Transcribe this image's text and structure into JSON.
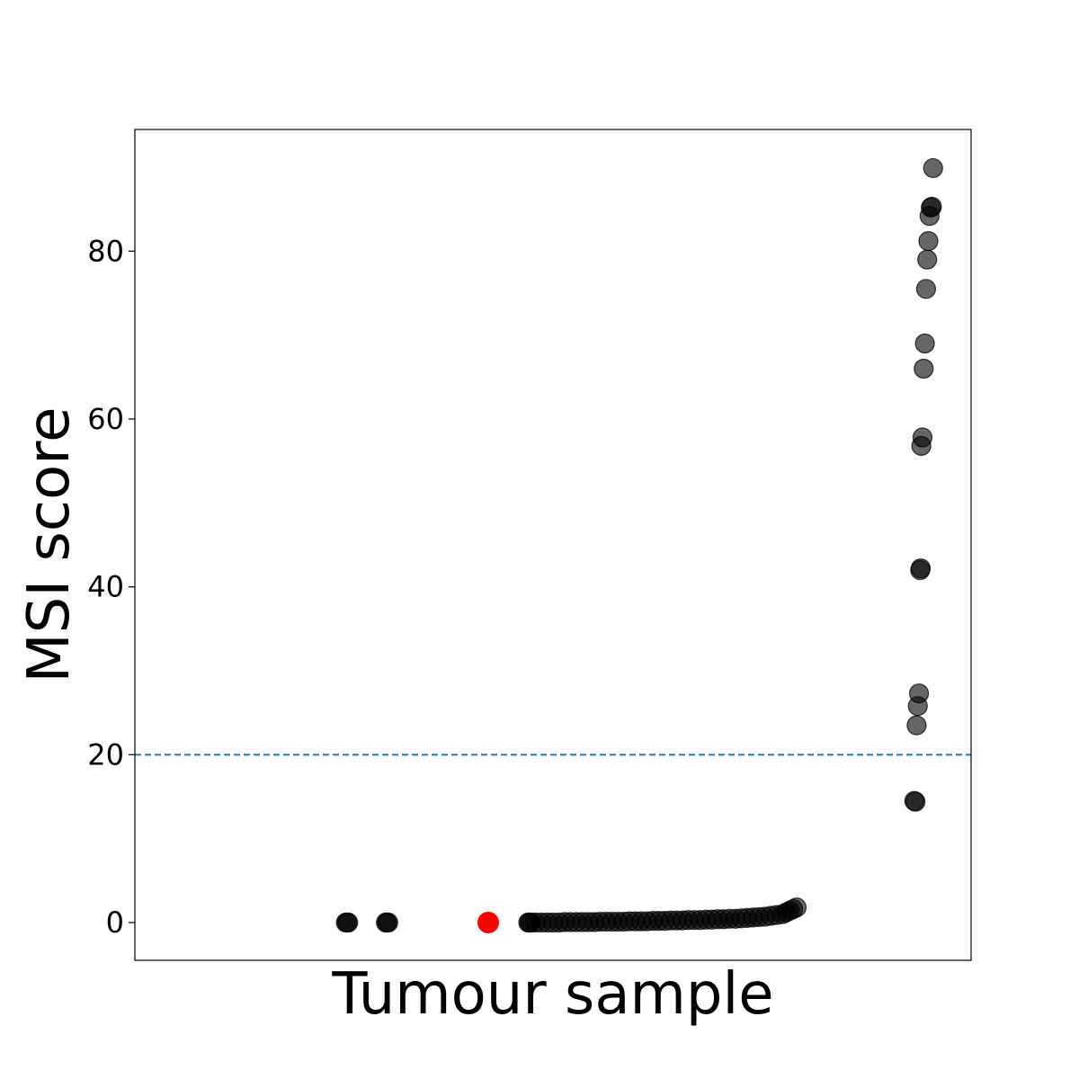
{
  "chart_data": {
    "type": "scatter",
    "title": "",
    "xlabel": "Tumour sample",
    "ylabel": "MSI score",
    "ylim": [
      -4.5,
      94.5
    ],
    "yticks": [
      0,
      20,
      40,
      60,
      80
    ],
    "x_ticks_shown": false,
    "grid": false,
    "legend": "none",
    "threshold": {
      "y": 20,
      "style": "dashed",
      "color": "#1f77b4"
    },
    "colors": {
      "point": "#000000",
      "highlight": "#ff0000",
      "axes": "#000000"
    },
    "point_opacity": 0.6,
    "highlight": {
      "x": 285,
      "y": 0
    },
    "x_range": [
      0,
      680
    ],
    "series": [
      {
        "points": [
          [
            164,
            0
          ],
          [
            165,
            0
          ],
          [
            166,
            0
          ],
          [
            198,
            0
          ],
          [
            199,
            0
          ],
          [
            200,
            0
          ],
          [
            319,
            0
          ],
          [
            320,
            0
          ],
          [
            321,
            0
          ],
          [
            325,
            0
          ],
          [
            330,
            0
          ],
          [
            335,
            0
          ],
          [
            340,
            0
          ],
          [
            345,
            0
          ],
          [
            350,
            0.05
          ],
          [
            355,
            0.05
          ],
          [
            360,
            0.05
          ],
          [
            365,
            0.05
          ],
          [
            370,
            0.05
          ],
          [
            375,
            0.05
          ],
          [
            380,
            0.1
          ],
          [
            385,
            0.1
          ],
          [
            390,
            0.1
          ],
          [
            395,
            0.1
          ],
          [
            400,
            0.1
          ],
          [
            405,
            0.15
          ],
          [
            410,
            0.15
          ],
          [
            415,
            0.15
          ],
          [
            420,
            0.15
          ],
          [
            425,
            0.2
          ],
          [
            430,
            0.2
          ],
          [
            435,
            0.2
          ],
          [
            440,
            0.25
          ],
          [
            445,
            0.25
          ],
          [
            450,
            0.25
          ],
          [
            455,
            0.3
          ],
          [
            460,
            0.3
          ],
          [
            465,
            0.3
          ],
          [
            470,
            0.35
          ],
          [
            475,
            0.35
          ],
          [
            480,
            0.4
          ],
          [
            485,
            0.4
          ],
          [
            490,
            0.45
          ],
          [
            495,
            0.45
          ],
          [
            500,
            0.5
          ],
          [
            505,
            0.55
          ],
          [
            510,
            0.6
          ],
          [
            515,
            0.65
          ],
          [
            520,
            0.7
          ],
          [
            525,
            0.8
          ],
          [
            530,
            0.9
          ],
          [
            535,
            1.0
          ],
          [
            538,
            1.2
          ],
          [
            541,
            1.4
          ],
          [
            544,
            1.6
          ],
          [
            547,
            1.8
          ],
          [
            647,
            14.5
          ],
          [
            648,
            14.4
          ],
          [
            649,
            23.5
          ],
          [
            650,
            25.8
          ],
          [
            651,
            27.3
          ],
          [
            652,
            42.0
          ],
          [
            652.5,
            42.2
          ],
          [
            653,
            56.8
          ],
          [
            654,
            57.8
          ],
          [
            655,
            66.0
          ],
          [
            656,
            69.0
          ],
          [
            657,
            75.5
          ],
          [
            658,
            79.0
          ],
          [
            659,
            81.2
          ],
          [
            660,
            84.2
          ],
          [
            661,
            85.2
          ],
          [
            662,
            85.3
          ],
          [
            663,
            89.9
          ]
        ]
      }
    ]
  }
}
